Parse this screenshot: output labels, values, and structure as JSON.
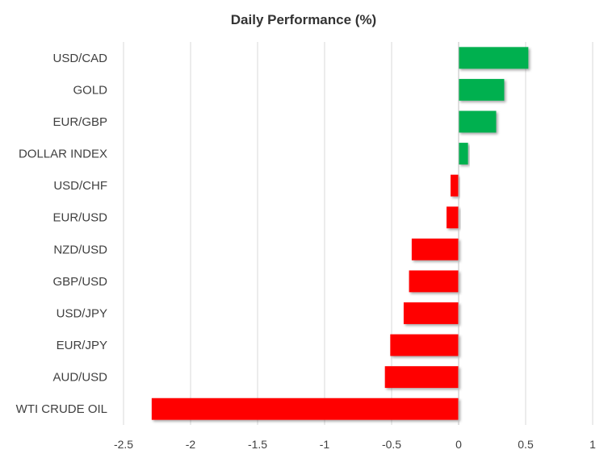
{
  "chart_data": {
    "type": "bar",
    "orientation": "horizontal",
    "title": "Daily Performance (%)",
    "xlabel": "",
    "ylabel": "",
    "categories": [
      "USD/CAD",
      "GOLD",
      "EUR/GBP",
      "DOLLAR INDEX",
      "USD/CHF",
      "EUR/USD",
      "NZD/USD",
      "GBP/USD",
      "USD/JPY",
      "EUR/JPY",
      "AUD/USD",
      "WTI CRUDE OIL"
    ],
    "values": [
      0.52,
      0.34,
      0.28,
      0.07,
      -0.06,
      -0.09,
      -0.35,
      -0.37,
      -0.41,
      -0.51,
      -0.55,
      -2.29
    ],
    "xlim": [
      -2.5,
      1
    ],
    "x_ticks": [
      "-2.5",
      "-2",
      "-1.5",
      "-1",
      "-0.5",
      "0",
      "0.5",
      "1"
    ],
    "grid": "vertical",
    "legend": "none",
    "colors": {
      "positive": "#00b050",
      "negative": "#ff0000",
      "grid": "#d9d9d9",
      "text": "#404040"
    }
  }
}
